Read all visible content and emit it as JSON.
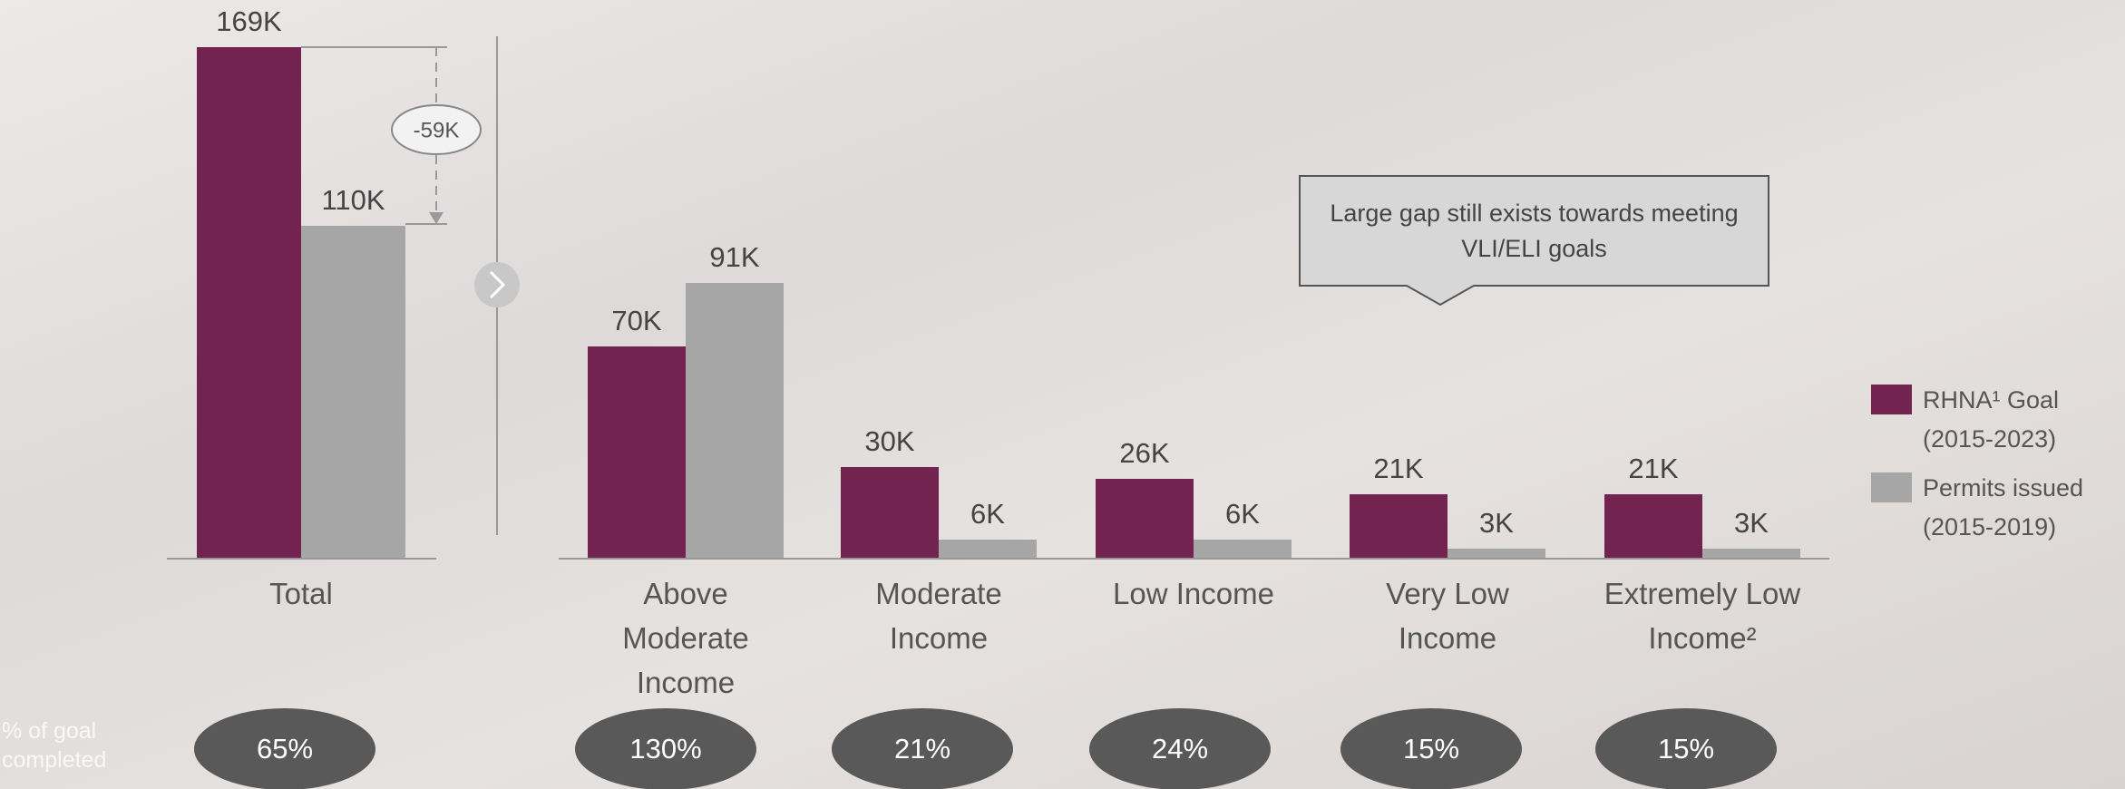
{
  "chart_data": {
    "type": "bar",
    "categories": [
      "Total",
      "Above\nModerate\nIncome",
      "Moderate\nIncome",
      "Low Income",
      "Very Low\nIncome",
      "Extremely Low\nIncome²"
    ],
    "series": [
      {
        "name": "RHNA¹ Goal\n(2015-2023)",
        "color": "#722350",
        "values": [
          169000,
          70000,
          30000,
          26000,
          21000,
          21000
        ],
        "value_labels": [
          "169K",
          "70K",
          "30K",
          "26K",
          "21K",
          "21K"
        ]
      },
      {
        "name": "Permits issued\n(2015-2019)",
        "color": "#a6a6a6",
        "values": [
          110000,
          91000,
          6000,
          6000,
          3000,
          3000
        ],
        "value_labels": [
          "110K",
          "91K",
          "6K",
          "6K",
          "3K",
          "3K"
        ]
      }
    ],
    "gap_annotation": {
      "value": -59000,
      "label": "-59K"
    },
    "callout": "Large gap still exists towards meeting VLI/ELI goals",
    "goal_completed": {
      "label": "% of goal completed",
      "values": [
        65,
        130,
        21,
        24,
        15,
        15
      ],
      "value_labels": [
        "65%",
        "130%",
        "21%",
        "24%",
        "15%",
        "15%"
      ]
    }
  }
}
